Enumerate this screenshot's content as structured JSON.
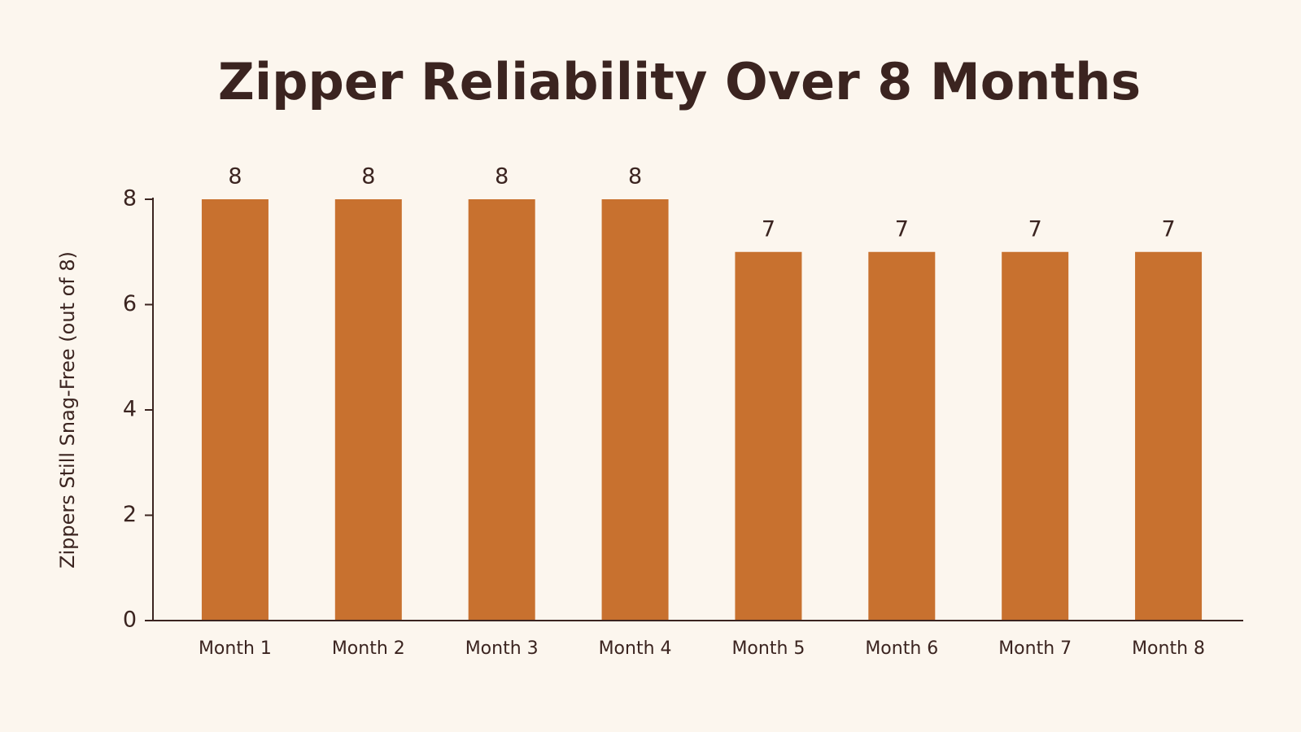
{
  "chart_data": {
    "type": "bar",
    "title": "Zipper Reliability Over 8 Months",
    "y_label": "Zippers Still Snag-Free (out of 8)",
    "categories": [
      "Month 1",
      "Month 2",
      "Month 3",
      "Month 4",
      "Month 5",
      "Month 6",
      "Month 7",
      "Month 8"
    ],
    "values": [
      8,
      8,
      8,
      8,
      7,
      7,
      7,
      7
    ],
    "color": "#c8712f",
    "ylim": [
      0,
      8
    ],
    "yticks": [
      0,
      2,
      4,
      6,
      8
    ],
    "grid": false
  }
}
